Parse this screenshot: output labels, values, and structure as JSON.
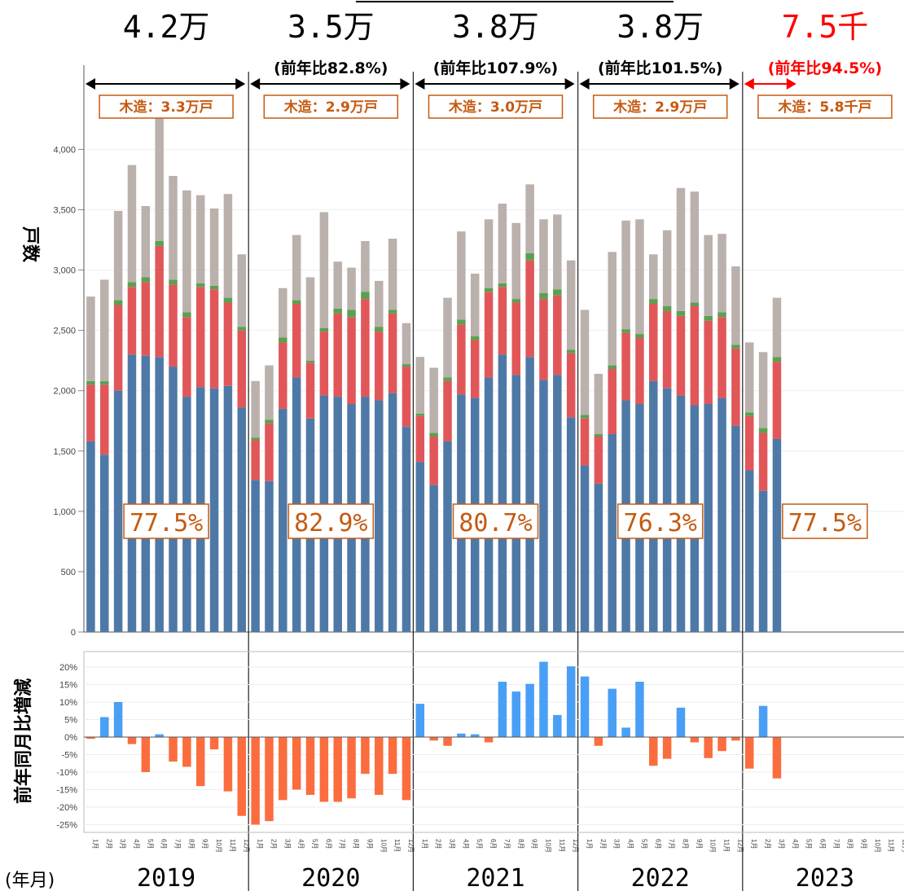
{
  "chart_data": [
    {
      "type": "bar",
      "stacked": true,
      "ylabel": "戸数",
      "xlabel": "(年月)",
      "ylim": [
        0,
        4300
      ],
      "yticks": [
        "0",
        "500",
        "1,000",
        "1,500",
        "2,000",
        "2,500",
        "3,000",
        "3,500",
        "4,000"
      ],
      "years": [
        "2019",
        "2020",
        "2021",
        "2022",
        "2023"
      ],
      "months": [
        "1月",
        "2月",
        "3月",
        "4月",
        "5月",
        "6月",
        "7月",
        "8月",
        "9月",
        "10月",
        "11月",
        "12月"
      ],
      "colors": {
        "blue": "#4e79a7",
        "red": "#e15759",
        "green": "#59a14f",
        "gray": "#bab0ac",
        "accent": "#c55a11",
        "red_text": "#ff0000",
        "pos": "#499ff5",
        "neg": "#fb6d3f"
      },
      "annual_totals": [
        "4.2万",
        "3.5万",
        "3.8万",
        "3.8万",
        "7.5千"
      ],
      "annual_yoy": [
        "",
        "(前年比82.8%)",
        "(前年比107.9%)",
        "(前年比101.5%)",
        "(前年比94.5%)"
      ],
      "wood_totals": [
        "木造：3.3万戸",
        "木造：2.9万戸",
        "木造：3.0万戸",
        "木造：2.9万戸",
        "木造：5.8千戸"
      ],
      "wood_share": [
        "77.5%",
        "82.9%",
        "80.7%",
        "76.3%",
        "77.5%"
      ],
      "series_stack": [
        {
          "color": "blue",
          "values": [
            1580,
            1470,
            2000,
            2300,
            2290,
            2280,
            2200,
            1950,
            2030,
            2020,
            2040,
            1860,
            1260,
            1250,
            1850,
            2110,
            1770,
            1960,
            1950,
            1890,
            1950,
            1920,
            1980,
            1700,
            1410,
            1220,
            1580,
            1970,
            1940,
            2110,
            2300,
            2130,
            2280,
            2090,
            2130,
            1780,
            1380,
            1230,
            1640,
            1920,
            1890,
            2080,
            2020,
            1960,
            1880,
            1890,
            1940,
            1710,
            1340,
            1170,
            1600
          ]
        },
        {
          "color": "red",
          "values": [
            470,
            580,
            710,
            560,
            610,
            920,
            680,
            660,
            830,
            820,
            690,
            640,
            330,
            480,
            550,
            610,
            460,
            530,
            690,
            720,
            810,
            570,
            660,
            500,
            380,
            400,
            500,
            580,
            480,
            710,
            560,
            600,
            800,
            670,
            660,
            530,
            390,
            390,
            540,
            560,
            550,
            640,
            640,
            660,
            820,
            690,
            670,
            640,
            450,
            480,
            640
          ]
        },
        {
          "color": "green",
          "values": [
            30,
            30,
            40,
            40,
            40,
            40,
            40,
            40,
            30,
            30,
            40,
            30,
            20,
            30,
            40,
            30,
            20,
            30,
            40,
            60,
            60,
            40,
            30,
            20,
            20,
            30,
            30,
            40,
            30,
            30,
            30,
            30,
            60,
            50,
            50,
            30,
            30,
            20,
            30,
            30,
            30,
            40,
            40,
            40,
            30,
            40,
            40,
            30,
            30,
            40,
            40
          ]
        },
        {
          "color": "gray",
          "values": [
            700,
            840,
            740,
            970,
            590,
            1050,
            860,
            1010,
            730,
            640,
            860,
            600,
            470,
            450,
            410,
            540,
            690,
            960,
            390,
            350,
            420,
            380,
            590,
            340,
            470,
            540,
            660,
            730,
            520,
            570,
            660,
            630,
            570,
            610,
            620,
            740,
            870,
            500,
            940,
            900,
            950,
            370,
            630,
            1020,
            920,
            670,
            650,
            650,
            580,
            630,
            490
          ]
        }
      ]
    },
    {
      "type": "bar",
      "ylabel": "前年同月比増減",
      "ylim": [
        -27,
        22
      ],
      "yticks": [
        "-25%",
        "-20%",
        "-15%",
        "-10%",
        "-5%",
        "0%",
        "5%",
        "10%",
        "15%",
        "20%"
      ],
      "values": [
        -0.5,
        5.7,
        10.0,
        -2.0,
        -10.0,
        0.8,
        -7.0,
        -8.5,
        -14.0,
        -3.5,
        -15.5,
        -22.5,
        -25.0,
        -24.0,
        -18.0,
        -15.0,
        -16.5,
        -18.5,
        -18.5,
        -17.5,
        -10.5,
        -16.5,
        -10.5,
        -18.0,
        9.5,
        -1.0,
        -2.5,
        1.0,
        0.8,
        -1.5,
        15.8,
        13.0,
        15.2,
        21.5,
        6.3,
        20.2,
        17.3,
        -2.5,
        13.8,
        2.7,
        15.8,
        -8.2,
        -6.2,
        8.4,
        -1.5,
        -6.0,
        -4.0,
        -1.0,
        -9.0,
        8.9,
        -11.8
      ]
    }
  ]
}
